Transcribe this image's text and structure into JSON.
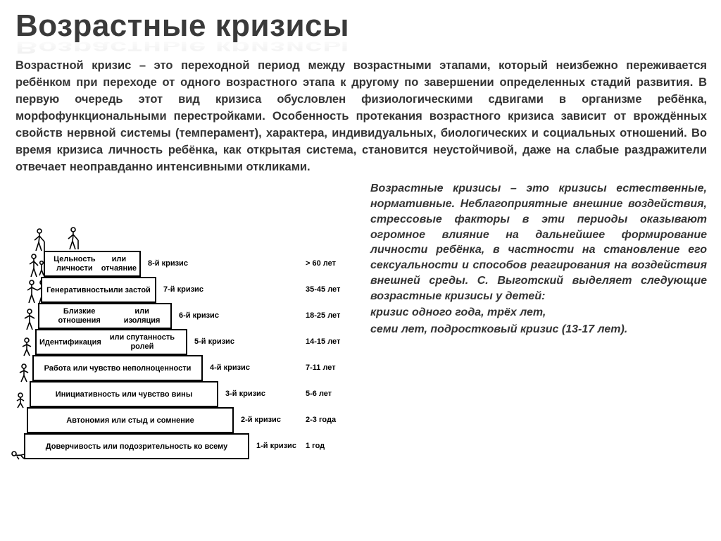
{
  "title": "Возрастные кризисы",
  "paragraph1": "Возрастной кризис – это переходной период между возрастными этапами, который неизбежно переживается ребёнком при переходе от одного возрастного этапа к другому по завершении определенных стадий развития. В первую очередь этот вид кризиса обусловлен физиологическими сдвигами в организме ребёнка, морфофункциональными перестройками. Особенность протекания возрастного кризиса зависит от врождённых свойств нервной системы (темперамент), характера, индивидуальных, биологических и социальных отношений. Во время кризиса личность ребёнка, как открытая система, становится неустойчивой, даже на слабые раздражители отвечает неоправданно интенсивными откликами.",
  "paragraph2": "Возрастные кризисы – это кризисы естественные, нормативные. Неблагоприятные внешние воздействия, стрессовые факторы в эти периоды оказывают огромное влияние на дальнейшее формирование личности ребёнка, в частности на становление его сексуальности и способов реагирования на воздействия внешней среды. С. Выготский выделяет следующие возрастные кризисы у детей:",
  "tail1": "кризис одного года, трёх лет,",
  "tail2": "семи лет, подростковый кризис (13-17 лет).",
  "colors": {
    "text": "#333333",
    "title": "#3a3a3a",
    "border": "#000000",
    "background": "#ffffff"
  },
  "diagram": {
    "type": "stair-infographic",
    "step_height": 37,
    "step_x_left": 20,
    "step_right_shrink": 22,
    "steps": [
      {
        "n": 1,
        "label": "Доверчивость или подозрительность ко всему",
        "crisis": "1-й кризис",
        "age": "1 год"
      },
      {
        "n": 2,
        "label": "Автономия или стыд и  сомнение",
        "crisis": "2-й кризис",
        "age": "2-3 года"
      },
      {
        "n": 3,
        "label": "Инициативность или  чувство вины",
        "crisis": "3-й кризис",
        "age": "5-6 лет"
      },
      {
        "n": 4,
        "label": "Работа или чувство неполноценности",
        "crisis": "4-й кризис",
        "age": "7-11 лет"
      },
      {
        "n": 5,
        "label": "Идентификация\nили спутанность ролей",
        "crisis": "5-й кризис",
        "age": "14-15 лет"
      },
      {
        "n": 6,
        "label": "Близкие отношения\nили изоляция",
        "crisis": "6-й кризис",
        "age": "18-25 лет"
      },
      {
        "n": 7,
        "label": "Генеративность\nили застой",
        "crisis": "7-й кризис",
        "age": "35-45 лет"
      },
      {
        "n": 8,
        "label": "Цельность личности\nили отчаяние",
        "crisis": "8-й кризис",
        "age": "> 60 лет"
      }
    ]
  }
}
